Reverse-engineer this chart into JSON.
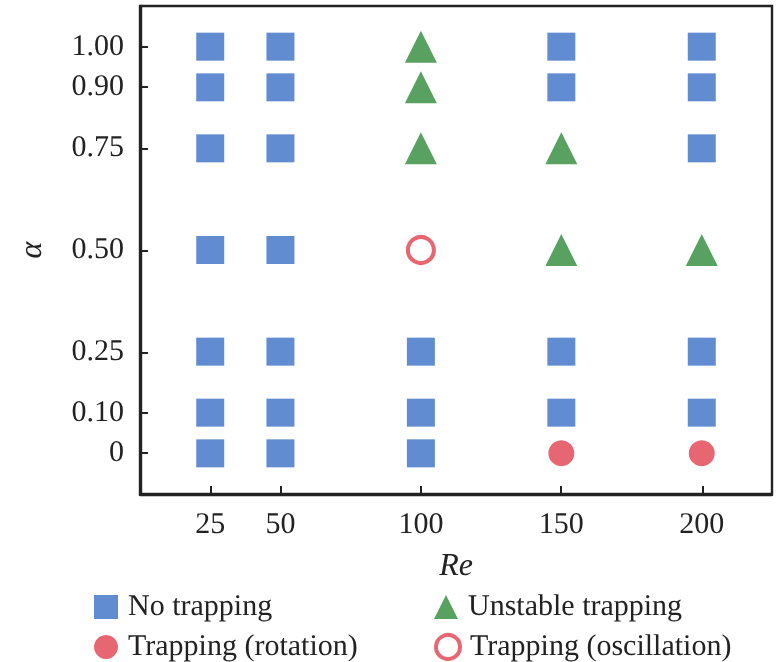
{
  "chart_data": {
    "type": "scatter",
    "xlabel": "Re",
    "ylabel": "α",
    "xlim": [
      0,
      225
    ],
    "xticks": [
      25,
      50,
      100,
      150,
      200
    ],
    "ylim": [
      -0.1,
      1.1
    ],
    "yticks": [
      {
        "value": 0,
        "label": "0"
      },
      {
        "value": 0.1,
        "label": "0.10"
      },
      {
        "value": 0.25,
        "label": "0.25"
      },
      {
        "value": 0.5,
        "label": "0.50"
      },
      {
        "value": 0.75,
        "label": "0.75"
      },
      {
        "value": 0.9,
        "label": "0.90"
      },
      {
        "value": 1,
        "label": "1.00"
      }
    ],
    "grid": false,
    "legend": "bottom",
    "series": [
      {
        "name": "No trapping",
        "color": "#3b6fc6",
        "marker": "square",
        "x": [
          25,
          25,
          25,
          25,
          25,
          25,
          25,
          50,
          50,
          50,
          50,
          50,
          50,
          50,
          100,
          100,
          100,
          150,
          150,
          150,
          150,
          200,
          200,
          200,
          200,
          200
        ],
        "values": [
          0,
          0.1,
          0.25,
          0.5,
          0.75,
          0.9,
          1,
          0,
          0.1,
          0.25,
          0.5,
          0.75,
          0.9,
          1,
          0,
          0.1,
          0.25,
          0.1,
          0.25,
          0.9,
          1,
          0.1,
          0.25,
          0.75,
          0.9,
          1
        ]
      },
      {
        "name": "Unstable trapping",
        "color": "#2f8a3a",
        "marker": "triangle",
        "x": [
          100,
          100,
          100,
          150,
          150,
          200
        ],
        "values": [
          0.75,
          0.9,
          1,
          0.5,
          0.75,
          0.5
        ]
      },
      {
        "name": "Trapping (rotation)",
        "color": "#e0404f",
        "marker": "circle",
        "x": [
          150,
          200
        ],
        "values": [
          0,
          0
        ]
      },
      {
        "name": "Trapping (oscillation)",
        "color": "#e0404f",
        "marker": "circle",
        "x": [
          100
        ],
        "values": [
          0.5
        ]
      }
    ]
  }
}
